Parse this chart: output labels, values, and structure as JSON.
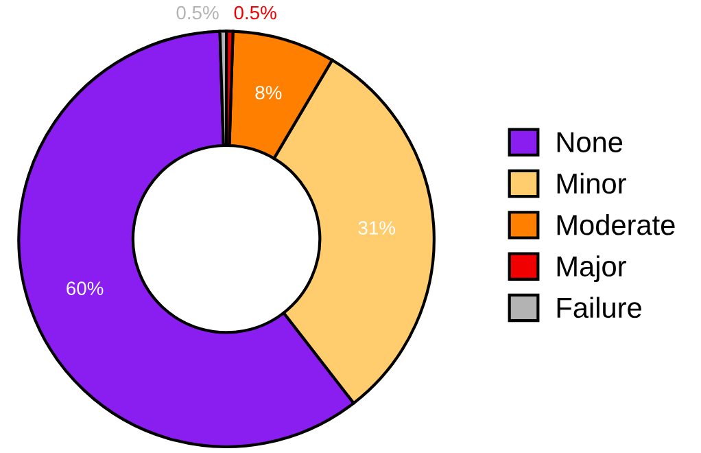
{
  "chart_data": {
    "type": "donut",
    "categories": [
      "None",
      "Minor",
      "Moderate",
      "Major",
      "Failure"
    ],
    "values": [
      60,
      31,
      8,
      0.5,
      0.5
    ],
    "colors": [
      "#8a1ef0",
      "#ffcc6e",
      "#ff8000",
      "#f00000",
      "#b3b3b3"
    ],
    "value_labels": [
      "60%",
      "31%",
      "8%",
      "0.5%",
      "0.5%"
    ],
    "legend": "right"
  }
}
